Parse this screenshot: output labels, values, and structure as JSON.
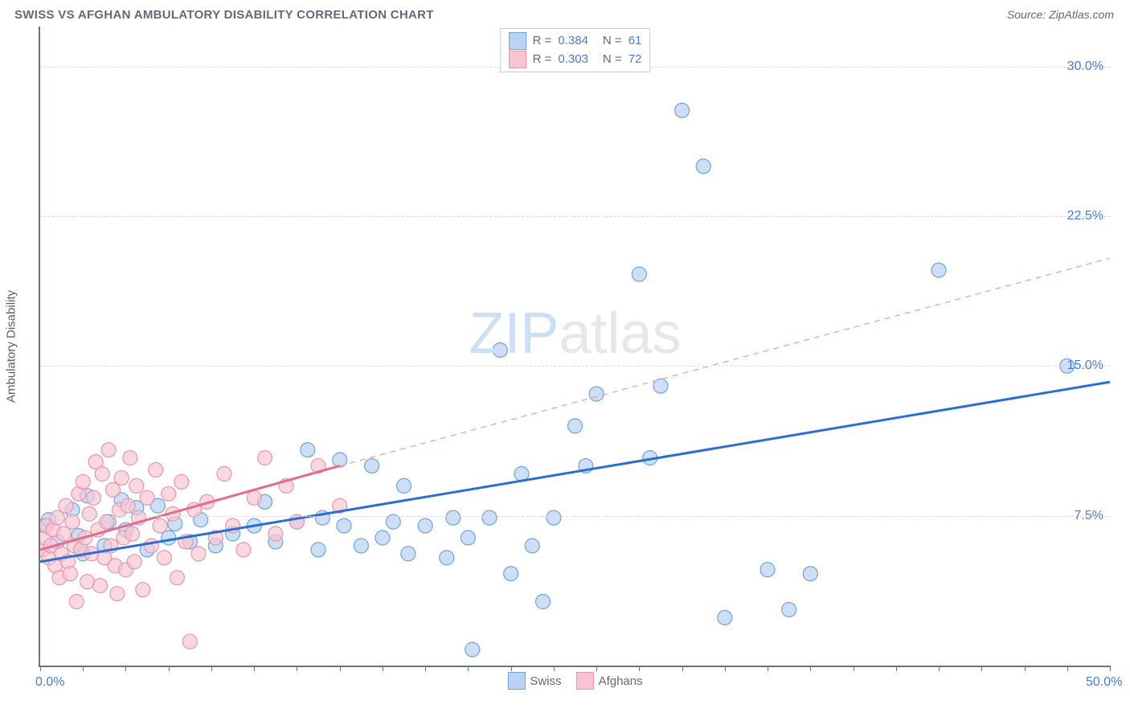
{
  "title": "SWISS VS AFGHAN AMBULATORY DISABILITY CORRELATION CHART",
  "source": "Source: ZipAtlas.com",
  "ylabel": "Ambulatory Disability",
  "watermark_bold": "ZIP",
  "watermark_rest": "atlas",
  "chart": {
    "type": "scatter",
    "xlim": [
      0,
      50
    ],
    "ylim": [
      0,
      32
    ],
    "grid_color": "#d7dde3",
    "axis_color": "#6b7280",
    "xtick_positions": [
      0,
      2,
      4,
      6,
      8,
      10,
      12,
      14,
      16,
      18,
      20,
      22,
      24,
      26,
      28,
      30,
      32,
      34,
      36,
      38,
      40,
      42,
      44,
      46,
      48,
      50
    ],
    "xtick_labels": {
      "0": "0.0%",
      "50": "50.0%"
    },
    "ytick_positions": [
      7.5,
      15.0,
      22.5,
      30.0
    ],
    "ytick_labels": [
      "7.5%",
      "15.0%",
      "22.5%",
      "30.0%"
    ],
    "legend_top": [
      {
        "swatch_fill": "#b9d3f0",
        "swatch_stroke": "#6ea3e0",
        "R": "0.384",
        "N": "61"
      },
      {
        "swatch_fill": "#f7c5d2",
        "swatch_stroke": "#ea94ad",
        "R": "0.303",
        "N": "72"
      }
    ],
    "legend_bottom": [
      {
        "swatch_fill": "#b9d3f0",
        "swatch_stroke": "#6ea3e0",
        "label": "Swiss"
      },
      {
        "swatch_fill": "#f7c5d2",
        "swatch_stroke": "#ea94ad",
        "label": "Afghans"
      }
    ],
    "series": [
      {
        "name": "Swiss",
        "marker_fill": "#b9d3f0",
        "marker_stroke": "#6ea3e0",
        "marker_r": 9,
        "marker_opacity": 0.72,
        "trend": {
          "type": "solid",
          "color": "#276fd1",
          "width": 3,
          "x1": 0,
          "y1": 5.2,
          "x2": 50,
          "y2": 14.2
        },
        "points": [
          [
            0.2,
            7.0
          ],
          [
            0.4,
            7.3
          ],
          [
            0.8,
            6.2
          ],
          [
            1.5,
            7.8
          ],
          [
            1.8,
            6.5
          ],
          [
            2.0,
            5.6
          ],
          [
            2.2,
            8.5
          ],
          [
            3.0,
            6.0
          ],
          [
            3.2,
            7.2
          ],
          [
            3.8,
            8.3
          ],
          [
            4.0,
            6.8
          ],
          [
            4.5,
            7.9
          ],
          [
            5.0,
            5.8
          ],
          [
            5.5,
            8.0
          ],
          [
            6.0,
            6.4
          ],
          [
            6.3,
            7.1
          ],
          [
            7.0,
            6.2
          ],
          [
            7.5,
            7.3
          ],
          [
            8.2,
            6.0
          ],
          [
            9.0,
            6.6
          ],
          [
            10.0,
            7.0
          ],
          [
            10.5,
            8.2
          ],
          [
            11.0,
            6.2
          ],
          [
            12.0,
            7.2
          ],
          [
            12.5,
            10.8
          ],
          [
            13.0,
            5.8
          ],
          [
            13.2,
            7.4
          ],
          [
            14.0,
            10.3
          ],
          [
            14.2,
            7.0
          ],
          [
            15.0,
            6.0
          ],
          [
            15.5,
            10.0
          ],
          [
            16.0,
            6.4
          ],
          [
            16.5,
            7.2
          ],
          [
            17.0,
            9.0
          ],
          [
            17.2,
            5.6
          ],
          [
            18.0,
            7.0
          ],
          [
            19.0,
            5.4
          ],
          [
            19.3,
            7.4
          ],
          [
            20.0,
            6.4
          ],
          [
            20.2,
            0.8
          ],
          [
            21.0,
            7.4
          ],
          [
            21.5,
            15.8
          ],
          [
            22.0,
            4.6
          ],
          [
            22.5,
            9.6
          ],
          [
            23.0,
            6.0
          ],
          [
            23.5,
            3.2
          ],
          [
            24.0,
            7.4
          ],
          [
            25.0,
            12.0
          ],
          [
            25.5,
            10.0
          ],
          [
            26.0,
            13.6
          ],
          [
            28.0,
            19.6
          ],
          [
            28.5,
            10.4
          ],
          [
            29.0,
            14.0
          ],
          [
            30.0,
            27.8
          ],
          [
            31.0,
            25.0
          ],
          [
            32.0,
            2.4
          ],
          [
            34.0,
            4.8
          ],
          [
            35.0,
            2.8
          ],
          [
            36.0,
            4.6
          ],
          [
            42.0,
            19.8
          ],
          [
            48.0,
            15.0
          ]
        ]
      },
      {
        "name": "Afghans",
        "marker_fill": "#f7c5d2",
        "marker_stroke": "#ea94ad",
        "marker_r": 9,
        "marker_opacity": 0.68,
        "trend_solid": {
          "color": "#e76a8c",
          "width": 3,
          "x1": 0,
          "y1": 5.8,
          "x2": 14,
          "y2": 10.0
        },
        "trend_dash": {
          "color": "#e9a7b9",
          "width": 1.4,
          "x1": 14,
          "y1": 10.0,
          "x2": 50,
          "y2": 20.4
        },
        "points": [
          [
            0.1,
            5.8
          ],
          [
            0.2,
            6.4
          ],
          [
            0.3,
            7.0
          ],
          [
            0.4,
            5.4
          ],
          [
            0.5,
            6.0
          ],
          [
            0.6,
            6.8
          ],
          [
            0.7,
            5.0
          ],
          [
            0.8,
            7.4
          ],
          [
            0.9,
            4.4
          ],
          [
            1.0,
            5.6
          ],
          [
            1.1,
            6.6
          ],
          [
            1.2,
            8.0
          ],
          [
            1.3,
            5.2
          ],
          [
            1.4,
            4.6
          ],
          [
            1.5,
            7.2
          ],
          [
            1.6,
            6.0
          ],
          [
            1.7,
            3.2
          ],
          [
            1.8,
            8.6
          ],
          [
            1.9,
            5.8
          ],
          [
            2.0,
            9.2
          ],
          [
            2.1,
            6.4
          ],
          [
            2.2,
            4.2
          ],
          [
            2.3,
            7.6
          ],
          [
            2.4,
            5.6
          ],
          [
            2.5,
            8.4
          ],
          [
            2.6,
            10.2
          ],
          [
            2.7,
            6.8
          ],
          [
            2.8,
            4.0
          ],
          [
            2.9,
            9.6
          ],
          [
            3.0,
            5.4
          ],
          [
            3.1,
            7.2
          ],
          [
            3.2,
            10.8
          ],
          [
            3.3,
            6.0
          ],
          [
            3.4,
            8.8
          ],
          [
            3.5,
            5.0
          ],
          [
            3.6,
            3.6
          ],
          [
            3.7,
            7.8
          ],
          [
            3.8,
            9.4
          ],
          [
            3.9,
            6.4
          ],
          [
            4.0,
            4.8
          ],
          [
            4.1,
            8.0
          ],
          [
            4.2,
            10.4
          ],
          [
            4.3,
            6.6
          ],
          [
            4.4,
            5.2
          ],
          [
            4.5,
            9.0
          ],
          [
            4.6,
            7.4
          ],
          [
            4.8,
            3.8
          ],
          [
            5.0,
            8.4
          ],
          [
            5.2,
            6.0
          ],
          [
            5.4,
            9.8
          ],
          [
            5.6,
            7.0
          ],
          [
            5.8,
            5.4
          ],
          [
            6.0,
            8.6
          ],
          [
            6.2,
            7.6
          ],
          [
            6.4,
            4.4
          ],
          [
            6.6,
            9.2
          ],
          [
            6.8,
            6.2
          ],
          [
            7.0,
            1.2
          ],
          [
            7.2,
            7.8
          ],
          [
            7.4,
            5.6
          ],
          [
            7.8,
            8.2
          ],
          [
            8.2,
            6.4
          ],
          [
            8.6,
            9.6
          ],
          [
            9.0,
            7.0
          ],
          [
            9.5,
            5.8
          ],
          [
            10.0,
            8.4
          ],
          [
            10.5,
            10.4
          ],
          [
            11.0,
            6.6
          ],
          [
            11.5,
            9.0
          ],
          [
            12.0,
            7.2
          ],
          [
            13.0,
            10.0
          ],
          [
            14.0,
            8.0
          ]
        ]
      }
    ]
  }
}
